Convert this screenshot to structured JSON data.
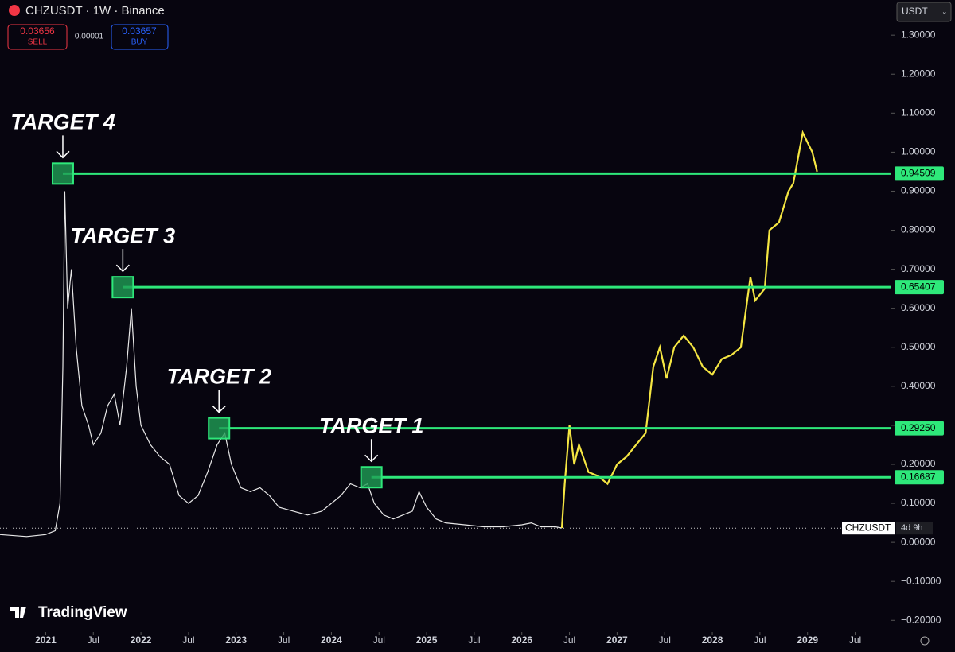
{
  "header": {
    "symbol": "CHZUSDT · 1W · Binance",
    "sell": {
      "price": 0.03656,
      "label": "SELL"
    },
    "spread": 1e-05,
    "buy": {
      "price": 0.03657,
      "label": "BUY"
    },
    "currency": "USDT",
    "logo": "TradingView"
  },
  "chart_data": {
    "type": "line",
    "xlim": [
      2020.52,
      2029.88
    ],
    "xticks": [
      2021,
      {
        "value": 2021.5,
        "label": "Jul"
      },
      2022,
      {
        "value": 2022.5,
        "label": "Jul"
      },
      2023,
      {
        "value": 2023.5,
        "label": "Jul"
      },
      2024,
      {
        "value": 2024.5,
        "label": "Jul"
      },
      2025,
      {
        "value": 2025.5,
        "label": "Jul"
      },
      2026,
      {
        "value": 2026.5,
        "label": "Jul"
      },
      2027,
      {
        "value": 2027.5,
        "label": "Jul"
      },
      2028,
      {
        "value": 2028.5,
        "label": "Jul"
      },
      2029,
      {
        "value": 2029.5,
        "label": "Jul"
      }
    ],
    "ylim": [
      -0.23,
      1.39
    ],
    "yticks": [
      {
        "value": 1.3,
        "label": "1.30000"
      },
      {
        "value": 1.2,
        "label": "1.20000"
      },
      {
        "value": 1.1,
        "label": "1.10000"
      },
      {
        "value": 1.0,
        "label": "1.00000"
      },
      {
        "value": 0.9,
        "label": "0.90000"
      },
      {
        "value": 0.8,
        "label": "0.80000"
      },
      {
        "value": 0.7,
        "label": "0.70000"
      },
      {
        "value": 0.6,
        "label": "0.60000"
      },
      {
        "value": 0.5,
        "label": "0.50000"
      },
      {
        "value": 0.4,
        "label": "0.40000"
      },
      {
        "value": 0.3,
        "label": "0.30000"
      },
      {
        "value": 0.2,
        "label": "0.20000"
      },
      {
        "value": 0.1,
        "label": "0.10000"
      },
      {
        "value": 0,
        "label": "0.00000"
      },
      {
        "value": -0.1,
        "label": "−0.10000"
      },
      {
        "value": -0.2,
        "label": "−0.20000"
      }
    ],
    "series": [
      {
        "color": "#e8e8e8",
        "x": [
          2020.52,
          2020.8,
          2021.0,
          2021.1,
          2021.15,
          2021.18,
          2021.2,
          2021.23,
          2021.27,
          2021.32,
          2021.38,
          2021.45,
          2021.5,
          2021.58,
          2021.65,
          2021.72,
          2021.78,
          2021.85,
          2021.9,
          2021.95,
          2022.0,
          2022.1,
          2022.2,
          2022.3,
          2022.4,
          2022.5,
          2022.6,
          2022.7,
          2022.8,
          2022.88,
          2022.95,
          2023.05,
          2023.15,
          2023.25,
          2023.35,
          2023.45,
          2023.6,
          2023.75,
          2023.9,
          2024.0,
          2024.1,
          2024.2,
          2024.3,
          2024.38,
          2024.45,
          2024.55,
          2024.65,
          2024.75,
          2024.85,
          2024.92,
          2025.0,
          2025.1,
          2025.2,
          2025.4,
          2025.6,
          2025.8,
          2026.0,
          2026.1,
          2026.2,
          2026.35,
          2026.42
        ],
        "values": [
          0.02,
          0.015,
          0.02,
          0.03,
          0.1,
          0.45,
          0.9,
          0.6,
          0.7,
          0.5,
          0.35,
          0.3,
          0.25,
          0.28,
          0.35,
          0.38,
          0.3,
          0.45,
          0.6,
          0.4,
          0.3,
          0.25,
          0.22,
          0.2,
          0.12,
          0.1,
          0.12,
          0.18,
          0.25,
          0.28,
          0.2,
          0.14,
          0.13,
          0.14,
          0.12,
          0.09,
          0.08,
          0.07,
          0.08,
          0.1,
          0.12,
          0.15,
          0.14,
          0.15,
          0.1,
          0.07,
          0.06,
          0.07,
          0.08,
          0.13,
          0.09,
          0.06,
          0.05,
          0.045,
          0.04,
          0.04,
          0.045,
          0.05,
          0.04,
          0.04,
          0.037
        ]
      },
      {
        "color": "#f5e642",
        "x": [
          2026.42,
          2026.45,
          2026.5,
          2026.55,
          2026.6,
          2026.7,
          2026.8,
          2026.9,
          2027.0,
          2027.1,
          2027.2,
          2027.3,
          2027.38,
          2027.45,
          2027.52,
          2027.6,
          2027.7,
          2027.8,
          2027.9,
          2028.0,
          2028.1,
          2028.2,
          2028.3,
          2028.4,
          2028.45,
          2028.55,
          2028.6,
          2028.7,
          2028.8,
          2028.85,
          2028.95,
          2029.05,
          2029.1
        ],
        "values": [
          0.037,
          0.15,
          0.3,
          0.2,
          0.25,
          0.18,
          0.17,
          0.15,
          0.2,
          0.22,
          0.25,
          0.28,
          0.45,
          0.5,
          0.42,
          0.5,
          0.53,
          0.5,
          0.45,
          0.43,
          0.47,
          0.48,
          0.5,
          0.68,
          0.62,
          0.65,
          0.8,
          0.82,
          0.9,
          0.92,
          1.05,
          1.0,
          0.95
        ]
      }
    ],
    "targets": [
      {
        "label": "TARGET 4",
        "x": 2021.18,
        "value": 0.94509,
        "price_label": "0.94509"
      },
      {
        "label": "TARGET 3",
        "x": 2021.81,
        "value": 0.65407,
        "price_label": "0.65407"
      },
      {
        "label": "TARGET 2",
        "x": 2022.82,
        "value": 0.2925,
        "price_label": "0.29250"
      },
      {
        "label": "TARGET 1",
        "x": 2024.42,
        "value": 0.16687,
        "price_label": "0.16687"
      }
    ],
    "current": {
      "value": 0.03656,
      "symbol": "CHZUSDT",
      "countdown": "4d 9h"
    }
  }
}
